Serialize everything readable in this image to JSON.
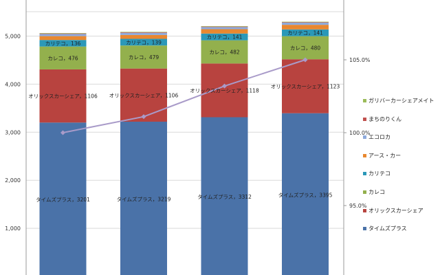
{
  "chart_data": {
    "type": "bar",
    "stacked": true,
    "categories": [
      "",
      "",
      "",
      ""
    ],
    "series": [
      {
        "name": "タイムズプラス",
        "label": "タイムズプラス",
        "color": "#4a72a8",
        "values": [
          3201,
          3219,
          3312,
          3395
        ]
      },
      {
        "name": "オリックスカーシェア",
        "label": "オリックスカーシェア",
        "color": "#b8433f",
        "values": [
          1106,
          1106,
          1118,
          1123
        ]
      },
      {
        "name": "カレコ",
        "label": "カレコ",
        "color": "#93b04d",
        "values": [
          476,
          479,
          482,
          480
        ]
      },
      {
        "name": "カリテコ",
        "label": "カリテコ",
        "color": "#2b98b8",
        "values": [
          136,
          139,
          141,
          141
        ]
      },
      {
        "name": "アース・カー",
        "color": "#e8882f",
        "values": [
          80,
          80,
          90,
          95
        ]
      },
      {
        "name": "エコロカ",
        "color": "#8eaadb",
        "values": [
          45,
          45,
          45,
          45
        ]
      },
      {
        "name": "まちのりくん",
        "color": "#c0504d",
        "values": [
          10,
          10,
          10,
          10
        ]
      },
      {
        "name": "ガリバーカーシェアメイト",
        "color": "#9bbb59",
        "values": [
          10,
          10,
          10,
          10
        ]
      }
    ],
    "line_series": {
      "color": "#a99bc9",
      "values": [
        100.0,
        101.1,
        103.2,
        105.0
      ]
    },
    "y_axis": {
      "min": 0,
      "max": 5500,
      "ticks": [
        "1,000",
        "2,000",
        "3,000",
        "4,000",
        "5,000"
      ],
      "tick_values": [
        1000,
        2000,
        3000,
        4000,
        5000
      ]
    },
    "y2_axis": {
      "ticks": [
        "95.0%",
        "100.0%",
        "105.0%"
      ],
      "tick_values": [
        95.0,
        100.0,
        105.0
      ]
    },
    "legend_position": "right",
    "legend_order": [
      "ガリバーカーシェアメイト",
      "まちのりくん",
      "エコロカ",
      "アース・カー",
      "カリテコ",
      "カレコ",
      "オリックスカーシェア",
      "タイムズプラス"
    ]
  }
}
